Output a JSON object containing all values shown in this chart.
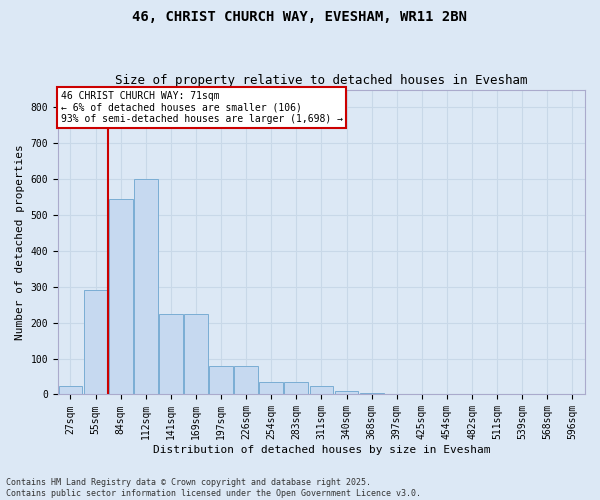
{
  "title1": "46, CHRIST CHURCH WAY, EVESHAM, WR11 2BN",
  "title2": "Size of property relative to detached houses in Evesham",
  "xlabel": "Distribution of detached houses by size in Evesham",
  "ylabel": "Number of detached properties",
  "footer1": "Contains HM Land Registry data © Crown copyright and database right 2025.",
  "footer2": "Contains public sector information licensed under the Open Government Licence v3.0.",
  "annotation_line1": "46 CHRIST CHURCH WAY: 71sqm",
  "annotation_line2": "← 6% of detached houses are smaller (106)",
  "annotation_line3": "93% of semi-detached houses are larger (1,698) →",
  "bar_categories": [
    "27sqm",
    "55sqm",
    "84sqm",
    "112sqm",
    "141sqm",
    "169sqm",
    "197sqm",
    "226sqm",
    "254sqm",
    "283sqm",
    "311sqm",
    "340sqm",
    "368sqm",
    "397sqm",
    "425sqm",
    "454sqm",
    "482sqm",
    "511sqm",
    "539sqm",
    "568sqm",
    "596sqm"
  ],
  "bar_values": [
    25,
    290,
    545,
    600,
    225,
    225,
    80,
    80,
    35,
    35,
    25,
    10,
    5,
    0,
    0,
    0,
    0,
    0,
    0,
    0,
    0
  ],
  "bar_color": "#c6d9f0",
  "bar_edgecolor": "#7aadd4",
  "vline_color": "#cc0000",
  "vline_x": 1.5,
  "annotation_box_edgecolor": "#cc0000",
  "annotation_bg": "#ffffff",
  "grid_color": "#c8d8e8",
  "plot_bg_color": "#dce8f5",
  "fig_bg_color": "#dce8f5",
  "ylim": [
    0,
    850
  ],
  "yticks": [
    0,
    100,
    200,
    300,
    400,
    500,
    600,
    700,
    800
  ],
  "title1_fontsize": 10,
  "title2_fontsize": 9,
  "xlabel_fontsize": 8,
  "ylabel_fontsize": 8,
  "tick_fontsize": 7,
  "footer_fontsize": 6
}
